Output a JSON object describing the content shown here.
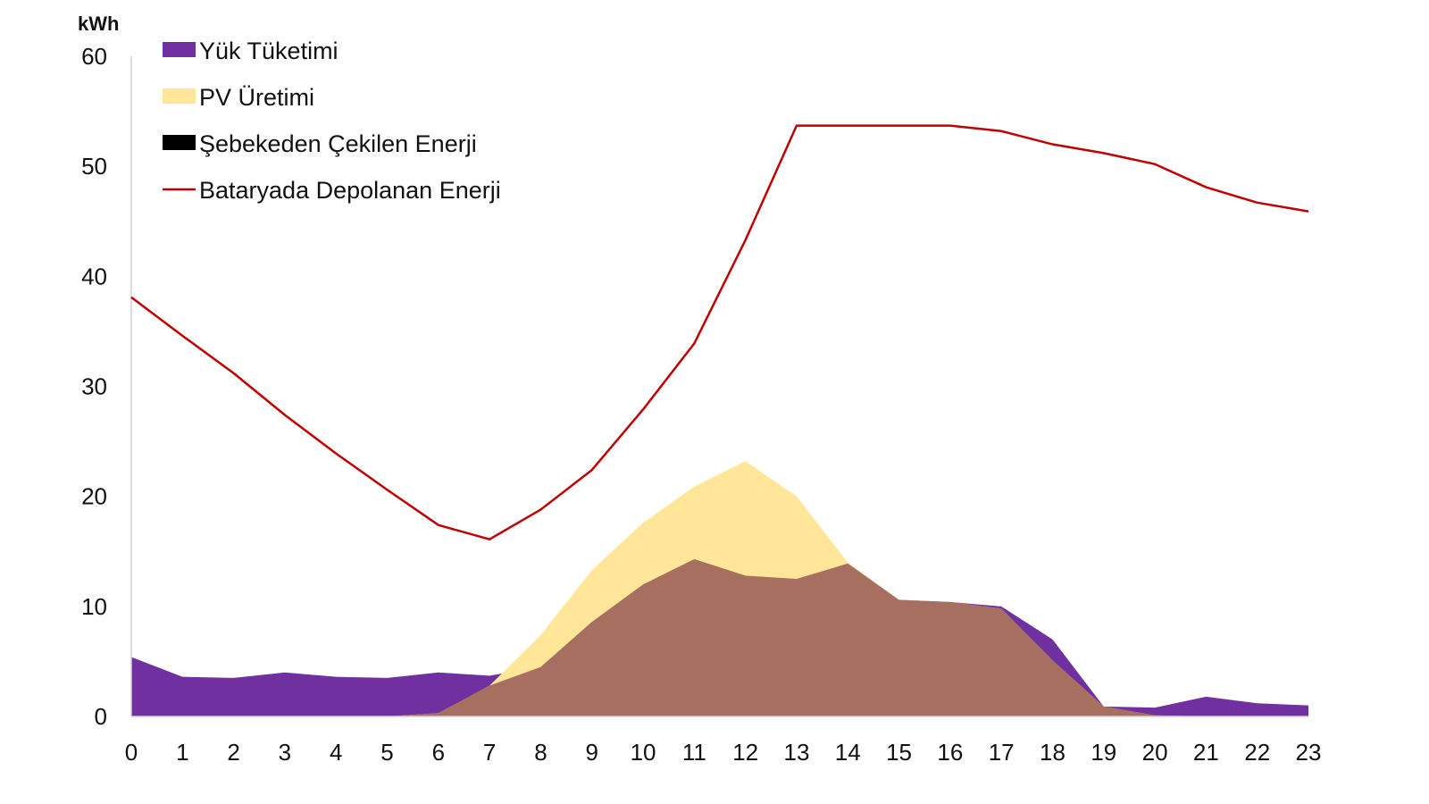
{
  "chart_data": {
    "type": "area",
    "unit_label": "kWh",
    "x": [
      0,
      1,
      2,
      3,
      4,
      5,
      6,
      7,
      8,
      9,
      10,
      11,
      12,
      13,
      14,
      15,
      16,
      17,
      18,
      19,
      20,
      21,
      22,
      23
    ],
    "ylim": [
      0,
      60
    ],
    "yticks": [
      0,
      10,
      20,
      30,
      40,
      50,
      60
    ],
    "grid": false,
    "legend_position": "top-left",
    "series": [
      {
        "name": "Yük Tüketimi",
        "kind": "area",
        "color": "#7030a0",
        "values": [
          5.4,
          3.6,
          3.5,
          4.0,
          3.6,
          3.5,
          4.0,
          3.7,
          4.5,
          8.6,
          12.0,
          14.3,
          12.8,
          12.5,
          13.9,
          10.6,
          10.4,
          10.0,
          7.0,
          0.9,
          0.8,
          1.8,
          1.2,
          1.0
        ]
      },
      {
        "name": "PV Üretimi",
        "kind": "area",
        "color": "#ffe699",
        "values": [
          0,
          0,
          0,
          0,
          0,
          0,
          0.3,
          2.8,
          7.4,
          13.3,
          17.6,
          20.9,
          23.2,
          20.0,
          14.0,
          10.6,
          10.4,
          9.8,
          5.1,
          0.9,
          0.1,
          0,
          0,
          0
        ]
      },
      {
        "name": "Şebekeden Çekilen Enerji",
        "kind": "area",
        "color": "#000000",
        "values": [
          0,
          0,
          0,
          0,
          0,
          0,
          0,
          0,
          0,
          0,
          0,
          0,
          0,
          0,
          0,
          0,
          0,
          0,
          0,
          0,
          0,
          0,
          0,
          0
        ]
      },
      {
        "name": "Bataryada Depolanan Enerji",
        "kind": "line",
        "color": "#c00000",
        "values": [
          38.1,
          34.6,
          31.2,
          27.4,
          23.9,
          20.6,
          17.4,
          16.1,
          18.8,
          22.4,
          27.9,
          33.9,
          43.3,
          53.7,
          53.7,
          53.7,
          53.7,
          53.2,
          52.0,
          51.2,
          50.2,
          48.1,
          46.7,
          45.9
        ]
      }
    ],
    "overlap_color": "#a66f60"
  }
}
